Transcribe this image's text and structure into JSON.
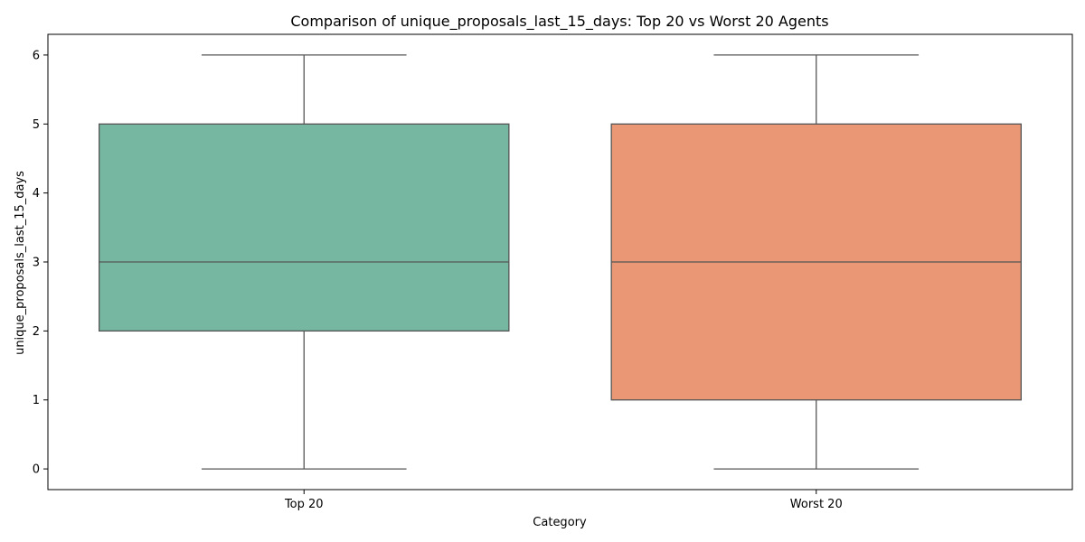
{
  "chart_data": {
    "type": "box",
    "title": "Comparison of unique_proposals_last_15_days: Top 20 vs Worst 20 Agents",
    "xlabel": "Category",
    "ylabel": "unique_proposals_last_15_days",
    "ylim": [
      -0.3,
      6.3
    ],
    "yticks": [
      0,
      1,
      2,
      3,
      4,
      5,
      6
    ],
    "grid": false,
    "categories": [
      "Top 20",
      "Worst 20"
    ],
    "boxes": [
      {
        "category": "Top 20",
        "min": 0,
        "q1": 2,
        "median": 3,
        "q3": 5,
        "max": 6,
        "color": "#76b7a2"
      },
      {
        "category": "Worst 20",
        "min": 0,
        "q1": 1,
        "median": 3,
        "q3": 5,
        "max": 6,
        "color": "#e99775"
      }
    ],
    "line_color": "#555555"
  }
}
